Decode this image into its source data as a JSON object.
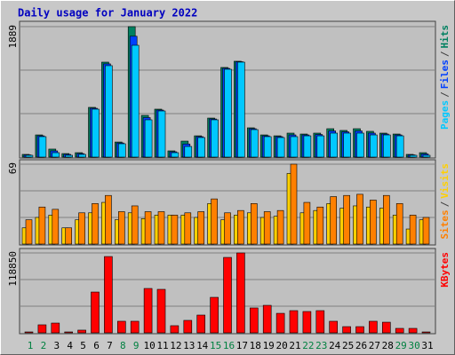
{
  "chart_data": [
    {
      "type": "bar",
      "title": "Daily usage for January 2022",
      "ylim": [
        0,
        1889
      ],
      "yticks": [
        1889
      ],
      "legend_separator": "/",
      "legend_position": "right",
      "series": [
        {
          "name": "Pages",
          "color": "#00c8ff",
          "values": [
            26,
            296,
            64,
            26,
            39,
            694,
            1324,
            193,
            1619,
            540,
            668,
            64,
            154,
            283,
            540,
            1272,
            1375,
            398,
            296,
            283,
            296,
            308,
            308,
            347,
            347,
            347,
            321,
            321,
            308,
            26,
            26
          ]
        },
        {
          "name": "Files",
          "color": "#0040ff",
          "values": [
            32,
            308,
            90,
            39,
            51,
            707,
            1350,
            205,
            1750,
            572,
            681,
            77,
            190,
            296,
            552,
            1285,
            1381,
            411,
            308,
            296,
            321,
            321,
            327,
            379,
            366,
            379,
            347,
            334,
            321,
            32,
            45
          ]
        },
        {
          "name": "Hits",
          "color": "#008060",
          "values": [
            39,
            321,
            116,
            51,
            64,
            720,
            1375,
            218,
            1889,
            604,
            694,
            90,
            231,
            308,
            565,
            1298,
            1388,
            424,
            321,
            308,
            347,
            334,
            347,
            411,
            386,
            411,
            373,
            347,
            334,
            39,
            64
          ]
        }
      ]
    },
    {
      "type": "bar",
      "ylim": [
        0,
        69
      ],
      "yticks": [
        69
      ],
      "legend_separator": "/",
      "legend_position": "right",
      "series": [
        {
          "name": "Sites",
          "color": "#ff8000",
          "values": [
            21,
            32,
            30,
            14,
            27,
            35,
            42,
            28,
            33,
            28,
            28,
            25,
            27,
            28,
            39,
            27,
            29,
            35,
            28,
            29,
            69,
            36,
            32,
            41,
            42,
            43,
            38,
            42,
            35,
            25,
            23
          ]
        },
        {
          "name": "Visits",
          "color": "#ffd000",
          "values": [
            14,
            23,
            25,
            14,
            21,
            27,
            36,
            21,
            27,
            22,
            25,
            25,
            25,
            23,
            35,
            21,
            25,
            27,
            23,
            24,
            61,
            27,
            29,
            35,
            31,
            33,
            32,
            31,
            25,
            13,
            21
          ]
        }
      ]
    },
    {
      "type": "bar",
      "ylim": [
        0,
        118850
      ],
      "yticks": [
        118850
      ],
      "legend_position": "right",
      "categories": [
        "1",
        "2",
        "3",
        "4",
        "5",
        "6",
        "7",
        "8",
        "9",
        "10",
        "11",
        "12",
        "13",
        "14",
        "15",
        "16",
        "17",
        "18",
        "19",
        "20",
        "21",
        "22",
        "23",
        "24",
        "25",
        "26",
        "27",
        "28",
        "29",
        "30",
        "31"
      ],
      "category_colors": [
        "#008040",
        "#008040",
        "#000000",
        "#000000",
        "#000000",
        "#000000",
        "#000000",
        "#008040",
        "#008040",
        "#000000",
        "#000000",
        "#000000",
        "#000000",
        "#000000",
        "#008040",
        "#008040",
        "#000000",
        "#000000",
        "#000000",
        "#000000",
        "#000000",
        "#008040",
        "#008040",
        "#000000",
        "#000000",
        "#000000",
        "#000000",
        "#000000",
        "#008040",
        "#008040",
        "#000000"
      ],
      "series": [
        {
          "name": "KBytes",
          "color": "#ff0000",
          "values": [
            1320,
            11900,
            14500,
            1320,
            4000,
            60700,
            113500,
            17200,
            17200,
            66000,
            64700,
            10600,
            18500,
            26400,
            52800,
            112200,
            118850,
            37000,
            40900,
            29000,
            33000,
            31700,
            33000,
            17200,
            9200,
            9200,
            17200,
            15800,
            6600,
            6600,
            1320
          ]
        }
      ]
    }
  ]
}
